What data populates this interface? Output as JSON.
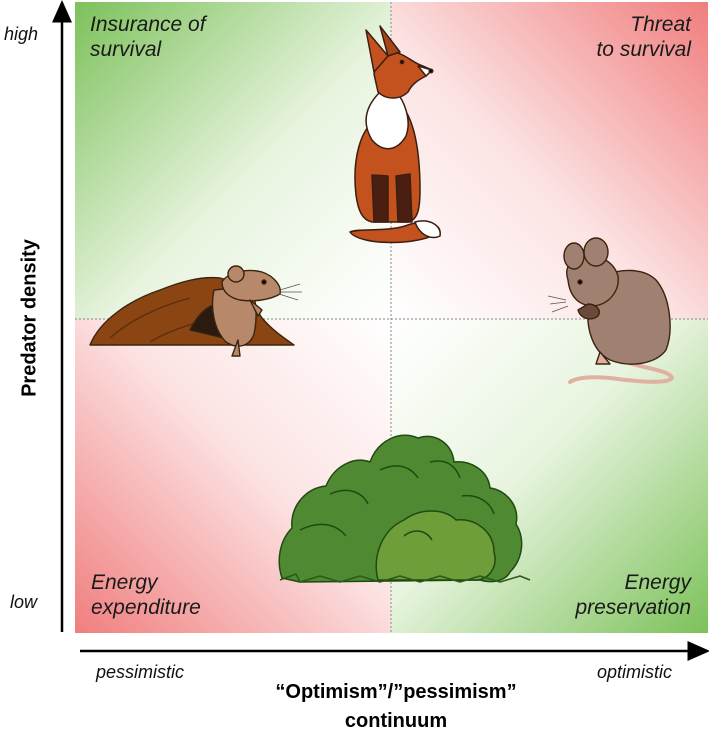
{
  "axes": {
    "y_title": "Predator density",
    "y_high": "high",
    "y_low": "low",
    "x_title_line1": "“Optimism”/”pessimism”",
    "x_title_line2": "continuum",
    "x_left": "pessimistic",
    "x_right": "optimistic"
  },
  "quadrants": {
    "top_left": {
      "line1": "Insurance of",
      "line2": "survival",
      "color": "#7cc15a"
    },
    "top_right": {
      "line1": "Threat",
      "line2": "to survival",
      "color": "#f07e7e"
    },
    "bottom_left": {
      "line1": "Energy",
      "line2": "expenditure",
      "color": "#f07e7e"
    },
    "bottom_right": {
      "line1": "Energy",
      "line2": "preservation",
      "color": "#7cc15a"
    }
  },
  "illustrations": [
    "fox-illustration",
    "vole-in-burrow-illustration",
    "mouse-eating-illustration",
    "bush-illustration"
  ]
}
